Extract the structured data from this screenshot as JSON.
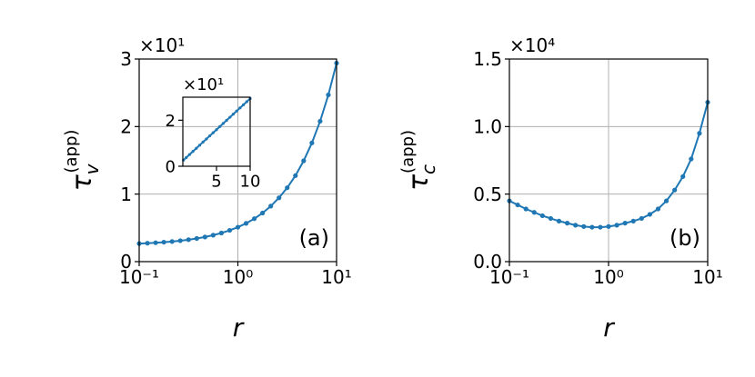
{
  "chart_data": [
    {
      "type": "line",
      "panel_label": "(a)",
      "xlabel": "r",
      "ylabel": {
        "base": "τ",
        "sub": "v",
        "sup": "(app)"
      },
      "offset_text": "×10¹",
      "xscale": "log",
      "xlim": [
        0.1,
        10
      ],
      "xticks": [
        {
          "value": 0.1,
          "label": "10⁻¹"
        },
        {
          "value": 1,
          "label": "10⁰"
        },
        {
          "value": 10,
          "label": "10¹"
        }
      ],
      "ylim": [
        0,
        3
      ],
      "yticks": [
        0,
        1,
        2,
        3
      ],
      "grid": true,
      "color": "#1f77b4",
      "x": [
        0.1,
        0.1212,
        0.1468,
        0.1778,
        0.2154,
        0.261,
        0.3162,
        0.3831,
        0.4642,
        0.5623,
        0.6813,
        0.8254,
        1.0,
        1.2115,
        1.4678,
        1.7783,
        2.1544,
        2.6102,
        3.1623,
        3.8312,
        4.6416,
        5.6234,
        6.8129,
        8.254,
        10
      ],
      "values": [
        0.267,
        0.273,
        0.28,
        0.288,
        0.298,
        0.31,
        0.325,
        0.343,
        0.365,
        0.392,
        0.424,
        0.463,
        0.51,
        0.567,
        0.636,
        0.72,
        0.822,
        0.945,
        1.094,
        1.274,
        1.493,
        1.758,
        2.079,
        2.469,
        2.94
      ],
      "inset": {
        "type": "line",
        "offset_text": "×10¹",
        "xscale": "linear",
        "xlim": [
          0,
          10
        ],
        "xticks": [
          5,
          10
        ],
        "ylim": [
          0,
          3
        ],
        "yticks": [
          0,
          2
        ],
        "grid": false,
        "color": "#1f77b4",
        "x": [
          0.1,
          0.5,
          1.0,
          1.5,
          2.0,
          2.5,
          3.0,
          3.5,
          4.0,
          4.5,
          5.0,
          5.5,
          6.0,
          6.5,
          7.0,
          7.5,
          8.0,
          8.5,
          9.0,
          9.5,
          10
        ],
        "values": [
          0.267,
          0.375,
          0.51,
          0.645,
          0.78,
          0.915,
          1.05,
          1.185,
          1.32,
          1.455,
          1.59,
          1.725,
          1.86,
          1.995,
          2.13,
          2.265,
          2.4,
          2.535,
          2.67,
          2.805,
          2.94
        ]
      }
    },
    {
      "type": "line",
      "panel_label": "(b)",
      "xlabel": "r",
      "ylabel": {
        "base": "τ",
        "sub": "c",
        "sup": "(app)"
      },
      "offset_text": "×10⁴",
      "xscale": "log",
      "xlim": [
        0.1,
        10
      ],
      "xticks": [
        {
          "value": 0.1,
          "label": "10⁻¹"
        },
        {
          "value": 1,
          "label": "10⁰"
        },
        {
          "value": 10,
          "label": "10¹"
        }
      ],
      "ylim": [
        0,
        1.5
      ],
      "yticks": [
        {
          "value": 0,
          "label": "0.0"
        },
        {
          "value": 0.5,
          "label": "0.5"
        },
        {
          "value": 1,
          "label": "1.0"
        },
        1.5
      ],
      "grid": true,
      "color": "#1f77b4",
      "x": [
        0.1,
        0.1212,
        0.1468,
        0.1778,
        0.2154,
        0.261,
        0.3162,
        0.3831,
        0.4642,
        0.5623,
        0.6813,
        0.8254,
        1.0,
        1.2115,
        1.4678,
        1.7783,
        2.1544,
        2.6102,
        3.1623,
        3.8312,
        4.6416,
        5.6234,
        6.8129,
        8.254,
        10
      ],
      "values": [
        0.45,
        0.42,
        0.39,
        0.365,
        0.34,
        0.32,
        0.3,
        0.285,
        0.27,
        0.26,
        0.255,
        0.255,
        0.26,
        0.27,
        0.285,
        0.3,
        0.32,
        0.35,
        0.39,
        0.45,
        0.53,
        0.63,
        0.76,
        0.95,
        1.18
      ]
    }
  ]
}
